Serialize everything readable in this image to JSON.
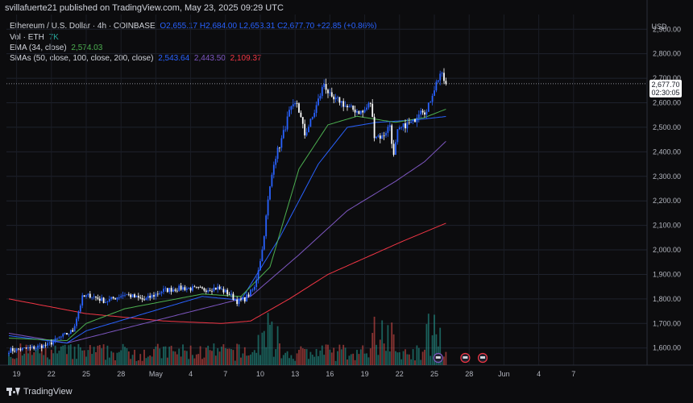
{
  "header": {
    "publisher": "svillafuerte21 published on TradingView.com, May 23, 2025 09:29 UTC"
  },
  "legend": {
    "title": "Ethereum / U.S. Dollar · 4h · COINBASE",
    "ohlc": "O2,655.17  H2,684.00  L2,653.31  C2,677.70  +22.85 (+0.86%)",
    "vol_label": "Vol · ETH",
    "vol_value": "7K",
    "ema_label": "EMA (34, close)",
    "ema_value": "2,574.03",
    "sma_label": "SMAs (50, close, 100, close, 200, close)",
    "sma50_value": "2,543.64",
    "sma100_value": "2,443.50",
    "sma200_value": "2,109.37"
  },
  "currency": "USD",
  "price_tag": {
    "price": "2,677.70",
    "countdown": "02:30:05"
  },
  "brand": "TradingView",
  "colors": {
    "up": "#2962ff",
    "down": "#ffffff",
    "ema": "#4caf50",
    "sma50": "#2962ff",
    "sma100": "#7e57c2",
    "sma200": "#f23645",
    "vol_up": "#26a69a",
    "vol_down": "#ef5350"
  },
  "chart_data": {
    "type": "candlestick",
    "symbol": "ETHUSD",
    "interval": "4h",
    "y_ticks": [
      "1,600.00",
      "1,700.00",
      "1,800.00",
      "1,900.00",
      "2,000.00",
      "2,100.00",
      "2,200.00",
      "2,300.00",
      "2,400.00",
      "2,500.00",
      "2,600.00",
      "2,700.00",
      "2,800.00",
      "2,900.00"
    ],
    "ylim": [
      1530,
      2960
    ],
    "x_ticks": [
      "19",
      "22",
      "25",
      "28",
      "May",
      "4",
      "7",
      "10",
      "13",
      "16",
      "19",
      "22",
      "25",
      "28",
      "Jun",
      "4",
      "7"
    ],
    "price_anchors": [
      [
        0,
        1590
      ],
      [
        12,
        1600
      ],
      [
        20,
        1612
      ],
      [
        27,
        1645
      ],
      [
        33,
        1670
      ],
      [
        36,
        1750
      ],
      [
        38,
        1805
      ],
      [
        42,
        1815
      ],
      [
        50,
        1790
      ],
      [
        60,
        1820
      ],
      [
        70,
        1795
      ],
      [
        80,
        1835
      ],
      [
        90,
        1845
      ],
      [
        100,
        1838
      ],
      [
        108,
        1845
      ],
      [
        114,
        1820
      ],
      [
        118,
        1790
      ],
      [
        122,
        1800
      ],
      [
        127,
        1845
      ],
      [
        131,
        2000
      ],
      [
        134,
        2200
      ],
      [
        137,
        2360
      ],
      [
        141,
        2450
      ],
      [
        145,
        2560
      ],
      [
        149,
        2600
      ],
      [
        153,
        2470
      ],
      [
        157,
        2540
      ],
      [
        160,
        2610
      ],
      [
        163,
        2680
      ],
      [
        167,
        2610
      ],
      [
        171,
        2610
      ],
      [
        175,
        2580
      ],
      [
        179,
        2570
      ],
      [
        183,
        2560
      ],
      [
        187,
        2600
      ],
      [
        189,
        2470
      ],
      [
        193,
        2460
      ],
      [
        197,
        2510
      ],
      [
        199,
        2380
      ],
      [
        201,
        2480
      ],
      [
        205,
        2510
      ],
      [
        209,
        2520
      ],
      [
        213,
        2580
      ],
      [
        216,
        2560
      ],
      [
        219,
        2640
      ],
      [
        223,
        2720
      ],
      [
        226,
        2677.7
      ]
    ],
    "ema34": [
      [
        0,
        1640
      ],
      [
        30,
        1630
      ],
      [
        40,
        1700
      ],
      [
        60,
        1760
      ],
      [
        100,
        1820
      ],
      [
        120,
        1810
      ],
      [
        135,
        1930
      ],
      [
        150,
        2330
      ],
      [
        165,
        2510
      ],
      [
        180,
        2545
      ],
      [
        200,
        2520
      ],
      [
        215,
        2540
      ],
      [
        226,
        2574
      ]
    ],
    "sma50": [
      [
        0,
        1650
      ],
      [
        30,
        1620
      ],
      [
        40,
        1670
      ],
      [
        70,
        1740
      ],
      [
        100,
        1810
      ],
      [
        120,
        1795
      ],
      [
        140,
        2050
      ],
      [
        160,
        2350
      ],
      [
        175,
        2500
      ],
      [
        190,
        2520
      ],
      [
        210,
        2530
      ],
      [
        226,
        2544
      ]
    ],
    "sma100": [
      [
        0,
        1660
      ],
      [
        30,
        1620
      ],
      [
        60,
        1680
      ],
      [
        100,
        1760
      ],
      [
        125,
        1810
      ],
      [
        150,
        1980
      ],
      [
        175,
        2160
      ],
      [
        200,
        2280
      ],
      [
        215,
        2360
      ],
      [
        226,
        2443
      ]
    ],
    "sma200": [
      [
        0,
        1800
      ],
      [
        40,
        1740
      ],
      [
        80,
        1710
      ],
      [
        110,
        1700
      ],
      [
        125,
        1710
      ],
      [
        145,
        1800
      ],
      [
        165,
        1900
      ],
      [
        185,
        1970
      ],
      [
        205,
        2040
      ],
      [
        226,
        2109
      ]
    ],
    "current_price": 2677.7,
    "countdown": "02:30:05"
  }
}
